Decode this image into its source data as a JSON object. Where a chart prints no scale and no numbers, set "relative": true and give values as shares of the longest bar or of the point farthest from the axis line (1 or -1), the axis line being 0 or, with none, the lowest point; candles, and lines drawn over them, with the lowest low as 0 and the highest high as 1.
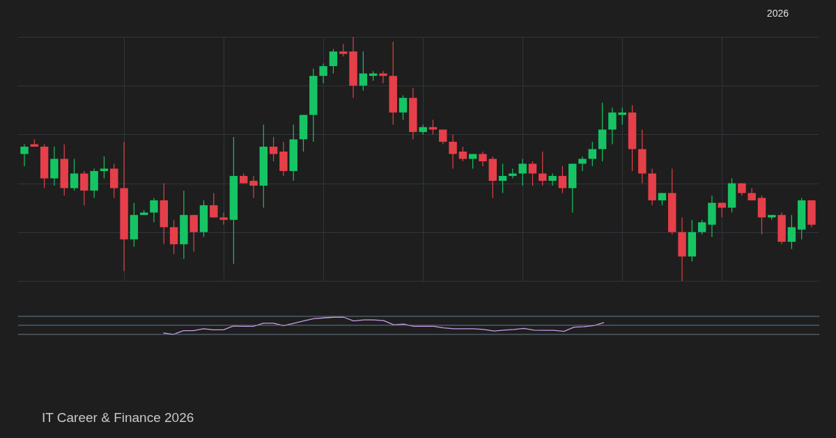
{
  "chart_data": [
    {
      "type": "candlestick",
      "relative": true,
      "grid": true,
      "categories": [
        null,
        null,
        null,
        null,
        null,
        null,
        null,
        null,
        null,
        null,
        null,
        null,
        null,
        null,
        null,
        null,
        null,
        null,
        null,
        null,
        null,
        null,
        null,
        null,
        null,
        null,
        null,
        null,
        null,
        null,
        null,
        null,
        null,
        null,
        null,
        null,
        null,
        null,
        null,
        null,
        null,
        null,
        null,
        null,
        null,
        null,
        null,
        null,
        null,
        null,
        null,
        null,
        null,
        null,
        null,
        null,
        null,
        null,
        null,
        null,
        null,
        null,
        null,
        null,
        null,
        null,
        null,
        null,
        null,
        null,
        null,
        null,
        null,
        null,
        null,
        null,
        null,
        null,
        null,
        null
      ],
      "ohlc": [
        [
          0.52,
          0.56,
          0.47,
          0.55
        ],
        [
          0.56,
          0.58,
          0.55,
          0.55
        ],
        [
          0.55,
          0.56,
          0.38,
          0.42
        ],
        [
          0.42,
          0.55,
          0.39,
          0.5
        ],
        [
          0.5,
          0.56,
          0.35,
          0.38
        ],
        [
          0.38,
          0.5,
          0.37,
          0.44
        ],
        [
          0.44,
          0.45,
          0.31,
          0.37
        ],
        [
          0.37,
          0.46,
          0.34,
          0.45
        ],
        [
          0.45,
          0.51,
          0.42,
          0.46
        ],
        [
          0.46,
          0.48,
          0.34,
          0.38
        ],
        [
          0.38,
          0.57,
          0.04,
          0.17
        ],
        [
          0.17,
          0.32,
          0.14,
          0.27
        ],
        [
          0.27,
          0.29,
          0.27,
          0.28
        ],
        [
          0.28,
          0.34,
          0.24,
          0.33
        ],
        [
          0.33,
          0.4,
          0.15,
          0.22
        ],
        [
          0.22,
          0.25,
          0.11,
          0.15
        ],
        [
          0.15,
          0.37,
          0.09,
          0.27
        ],
        [
          0.27,
          0.27,
          0.12,
          0.2
        ],
        [
          0.2,
          0.33,
          0.18,
          0.31
        ],
        [
          0.31,
          0.36,
          0.26,
          0.26
        ],
        [
          0.26,
          0.28,
          0.23,
          0.25
        ],
        [
          0.25,
          0.59,
          0.07,
          0.43
        ],
        [
          0.43,
          0.44,
          0.4,
          0.4
        ],
        [
          0.41,
          0.43,
          0.34,
          0.39
        ],
        [
          0.39,
          0.64,
          0.3,
          0.55
        ],
        [
          0.55,
          0.59,
          0.49,
          0.52
        ],
        [
          0.53,
          0.57,
          0.43,
          0.45
        ],
        [
          0.45,
          0.64,
          0.41,
          0.58
        ],
        [
          0.58,
          0.68,
          0.53,
          0.68
        ],
        [
          0.68,
          0.87,
          0.57,
          0.84
        ],
        [
          0.84,
          0.89,
          0.81,
          0.88
        ],
        [
          0.88,
          0.95,
          0.85,
          0.94
        ],
        [
          0.94,
          0.97,
          0.92,
          0.93
        ],
        [
          0.94,
          1.0,
          0.75,
          0.8
        ],
        [
          0.8,
          0.94,
          0.78,
          0.85
        ],
        [
          0.84,
          0.86,
          0.82,
          0.85
        ],
        [
          0.85,
          0.86,
          0.81,
          0.84
        ],
        [
          0.84,
          0.98,
          0.64,
          0.69
        ],
        [
          0.69,
          0.76,
          0.66,
          0.75
        ],
        [
          0.75,
          0.79,
          0.58,
          0.61
        ],
        [
          0.61,
          0.64,
          0.6,
          0.63
        ],
        [
          0.63,
          0.66,
          0.6,
          0.62
        ],
        [
          0.62,
          0.62,
          0.56,
          0.57
        ],
        [
          0.57,
          0.6,
          0.46,
          0.52
        ],
        [
          0.53,
          0.55,
          0.49,
          0.5
        ],
        [
          0.5,
          0.52,
          0.46,
          0.52
        ],
        [
          0.52,
          0.53,
          0.47,
          0.49
        ],
        [
          0.5,
          0.51,
          0.34,
          0.41
        ],
        [
          0.41,
          0.48,
          0.36,
          0.43
        ],
        [
          0.43,
          0.46,
          0.42,
          0.44
        ],
        [
          0.44,
          0.5,
          0.39,
          0.48
        ],
        [
          0.48,
          0.49,
          0.39,
          0.44
        ],
        [
          0.44,
          0.53,
          0.39,
          0.41
        ],
        [
          0.41,
          0.44,
          0.39,
          0.43
        ],
        [
          0.43,
          0.47,
          0.36,
          0.38
        ],
        [
          0.38,
          0.48,
          0.28,
          0.48
        ],
        [
          0.48,
          0.51,
          0.45,
          0.5
        ],
        [
          0.5,
          0.57,
          0.47,
          0.54
        ],
        [
          0.54,
          0.73,
          0.49,
          0.62
        ],
        [
          0.62,
          0.71,
          0.56,
          0.69
        ],
        [
          0.68,
          0.71,
          0.64,
          0.69
        ],
        [
          0.69,
          0.72,
          0.45,
          0.54
        ],
        [
          0.54,
          0.62,
          0.4,
          0.44
        ],
        [
          0.44,
          0.46,
          0.31,
          0.33
        ],
        [
          0.33,
          0.36,
          0.31,
          0.36
        ],
        [
          0.36,
          0.46,
          0.19,
          0.2
        ],
        [
          0.2,
          0.26,
          0,
          0.1
        ],
        [
          0.1,
          0.25,
          0.08,
          0.2
        ],
        [
          0.2,
          0.25,
          0.19,
          0.24
        ],
        [
          0.23,
          0.35,
          0.18,
          0.32
        ],
        [
          0.32,
          0.32,
          0.26,
          0.3
        ],
        [
          0.3,
          0.42,
          0.28,
          0.4
        ],
        [
          0.4,
          0.4,
          0.35,
          0.36
        ],
        [
          0.36,
          0.38,
          0.33,
          0.33
        ],
        [
          0.34,
          0.35,
          0.19,
          0.26
        ],
        [
          0.26,
          0.27,
          0.25,
          0.27
        ],
        [
          0.27,
          0.28,
          0.15,
          0.16
        ],
        [
          0.16,
          0.27,
          0.13,
          0.22
        ],
        [
          0.21,
          0.34,
          0.17,
          0.33
        ],
        [
          0.33,
          0.33,
          0.22,
          0.23
        ]
      ],
      "annotations": [
        "2026",
        "IT Career & Finance 2026"
      ]
    },
    {
      "type": "line",
      "relative": true,
      "categories": [
        null,
        null,
        null,
        null,
        null,
        null,
        null,
        null,
        null,
        null,
        null,
        null,
        null,
        null,
        null,
        null,
        null,
        null,
        null,
        null,
        null,
        null,
        null,
        null,
        null,
        null,
        null,
        null,
        null,
        null,
        null,
        null,
        null,
        null,
        null,
        null,
        null,
        null,
        null,
        null,
        null,
        null,
        null,
        null,
        null,
        null,
        null,
        null,
        null,
        null,
        null,
        null,
        null,
        null,
        null,
        null,
        null,
        null,
        null,
        null,
        null,
        null,
        null,
        null,
        null,
        null,
        null,
        null,
        null,
        null,
        null,
        null,
        null,
        null,
        null,
        null,
        null,
        null,
        null,
        null
      ],
      "series": [
        {
          "color": "#c9a0f0",
          "values": [
            null,
            null,
            null,
            null,
            null,
            null,
            null,
            null,
            null,
            null,
            null,
            null,
            null,
            null,
            0.09,
            0,
            0.22,
            0.22,
            0.33,
            0.27,
            0.27,
            0.49,
            0.47,
            0.47,
            0.65,
            0.65,
            0.51,
            0.64,
            0.78,
            0.91,
            0.96,
            1.0,
            1.0,
            0.78,
            0.84,
            0.84,
            0.8,
            0.56,
            0.6,
            0.47,
            0.47,
            0.47,
            0.38,
            0.33,
            0.33,
            0.33,
            0.29,
            0.2,
            0.25,
            0.29,
            0.35,
            0.25,
            0.24,
            0.24,
            0.18,
            0.42,
            0.45,
            0.51,
            0.69,
            null,
            null,
            null,
            null,
            null,
            null,
            null,
            null,
            null,
            null,
            null,
            null,
            null,
            null,
            null,
            null,
            null,
            null,
            null,
            null,
            null
          ]
        }
      ],
      "ref_lines": [
        {
          "axis": "y",
          "value": 1.05,
          "color": "#6b7a8a"
        },
        {
          "axis": "y",
          "value": 0.53,
          "color": "#6b7a8a"
        },
        {
          "axis": "y",
          "value": 0,
          "color": "#6b7a8a"
        }
      ]
    }
  ]
}
